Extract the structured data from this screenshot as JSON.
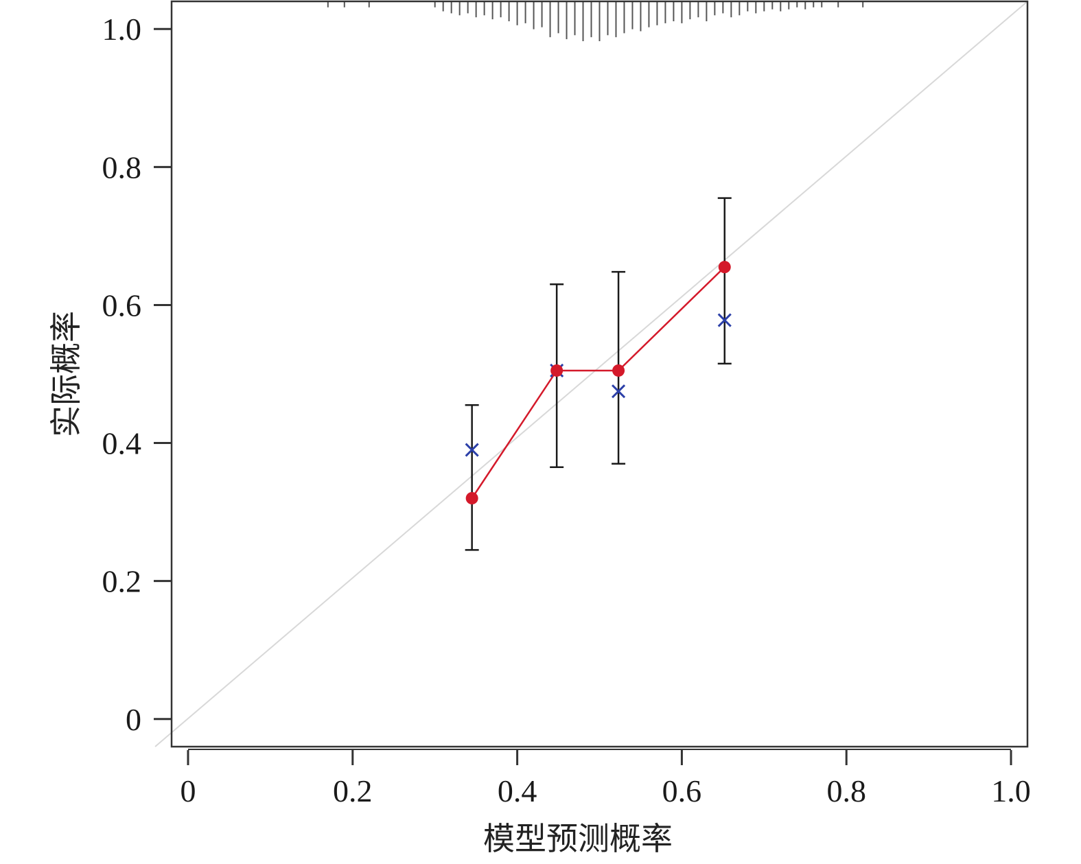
{
  "chart_data": {
    "type": "scatter",
    "title": "",
    "xlabel": "模型预测概率",
    "ylabel": "实际概率",
    "xlim": [
      -0.02,
      1.02
    ],
    "ylim": [
      -0.04,
      1.04
    ],
    "x_ticks": [
      0,
      0.2,
      0.4,
      0.6,
      0.8,
      1.0
    ],
    "x_tick_labels": [
      "0",
      "0.2",
      "0.4",
      "0.6",
      "0.8",
      "1.0"
    ],
    "y_ticks": [
      0,
      0.2,
      0.4,
      0.6,
      0.8,
      1.0
    ],
    "y_tick_labels": [
      "0",
      "0.2",
      "0.4",
      "0.6",
      "0.8",
      "1.0"
    ],
    "grid": false,
    "legend": "none",
    "reference_line": {
      "from": [
        -0.04,
        -0.04
      ],
      "to": [
        1.02,
        1.04
      ]
    },
    "series": [
      {
        "marker": "dot",
        "color": "#d4192a",
        "x": [
          0.345,
          0.448,
          0.523,
          0.652
        ],
        "y": [
          0.32,
          0.505,
          0.505,
          0.655
        ],
        "ci_lower": [
          0.245,
          0.365,
          0.37,
          0.515
        ],
        "ci_upper": [
          0.455,
          0.63,
          0.648,
          0.755
        ]
      },
      {
        "marker": "x",
        "color": "#2b3fa8",
        "x": [
          0.345,
          0.448,
          0.523,
          0.652
        ],
        "y": [
          0.39,
          0.505,
          0.475,
          0.578
        ]
      }
    ],
    "rug": {
      "position": "top",
      "values": [
        0.17,
        0.19,
        0.22,
        0.3,
        0.31,
        0.32,
        0.33,
        0.34,
        0.35,
        0.36,
        0.37,
        0.38,
        0.39,
        0.4,
        0.41,
        0.42,
        0.43,
        0.44,
        0.45,
        0.46,
        0.47,
        0.48,
        0.49,
        0.5,
        0.51,
        0.52,
        0.53,
        0.54,
        0.55,
        0.56,
        0.57,
        0.58,
        0.59,
        0.6,
        0.61,
        0.62,
        0.63,
        0.64,
        0.65,
        0.66,
        0.67,
        0.68,
        0.69,
        0.7,
        0.71,
        0.72,
        0.73,
        0.74,
        0.75,
        0.76,
        0.77,
        0.79,
        0.82
      ],
      "heights": [
        0.15,
        0.15,
        0.15,
        0.15,
        0.25,
        0.3,
        0.35,
        0.3,
        0.4,
        0.35,
        0.45,
        0.4,
        0.5,
        0.6,
        0.55,
        0.7,
        0.65,
        0.9,
        0.8,
        0.95,
        0.85,
        1.0,
        0.9,
        1.0,
        0.85,
        0.9,
        0.8,
        0.7,
        0.75,
        0.65,
        0.6,
        0.55,
        0.5,
        0.55,
        0.45,
        0.4,
        0.5,
        0.35,
        0.3,
        0.4,
        0.35,
        0.25,
        0.3,
        0.25,
        0.2,
        0.25,
        0.2,
        0.15,
        0.2,
        0.15,
        0.15,
        0.15,
        0.15
      ]
    }
  }
}
